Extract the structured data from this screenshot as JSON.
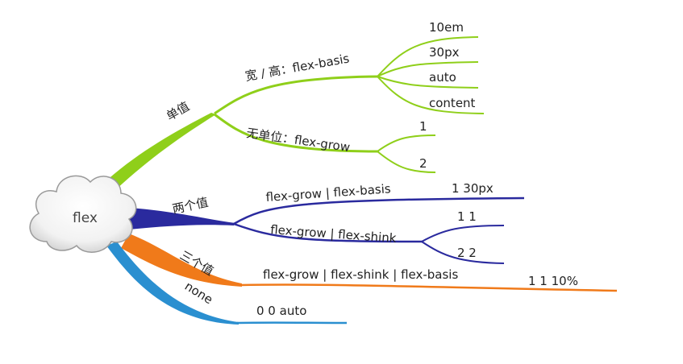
{
  "root": {
    "label": "flex"
  },
  "branches": {
    "single": {
      "label": "单值",
      "color": "#8fcf1a",
      "basis": {
        "label": "宽 / 高：flex-basis",
        "items": [
          "10em",
          "30px",
          "auto",
          "content"
        ]
      },
      "grow": {
        "label": "无单位：flex-grow",
        "items": [
          "1",
          "2"
        ]
      }
    },
    "double": {
      "label": "两个值",
      "color": "#2a2a9e",
      "grow_basis": {
        "label": "flex-grow | flex-basis",
        "value": "1 30px"
      },
      "grow_shrink": {
        "label": "flex-grow | flex-shink",
        "items": [
          "1 1",
          "2 2"
        ]
      }
    },
    "triple": {
      "label": "三个值",
      "color": "#f07a1a",
      "combo": {
        "label": "flex-grow | flex-shink | flex-basis",
        "value": "1 1 10%"
      }
    },
    "none": {
      "label": "none",
      "color": "#2a8fd0",
      "value": "0 0 auto"
    }
  }
}
